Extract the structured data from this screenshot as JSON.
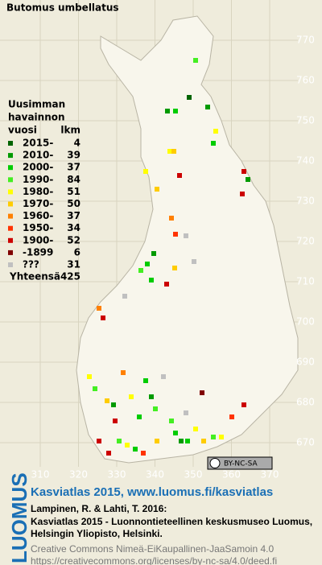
{
  "title": "Butomus umbellatus",
  "legend": {
    "heading": [
      "Uusimman",
      "havainnon",
      "vuosi"
    ],
    "count_heading": "lkm",
    "rows": [
      {
        "label": "2015-",
        "count": 4,
        "color": "#006400"
      },
      {
        "label": "2010-",
        "count": 39,
        "color": "#009a00"
      },
      {
        "label": "2000-",
        "count": 37,
        "color": "#00cc00"
      },
      {
        "label": "1990-",
        "count": 84,
        "color": "#44ee22"
      },
      {
        "label": "1980-",
        "count": 51,
        "color": "#ffff00"
      },
      {
        "label": "1970-",
        "count": 50,
        "color": "#ffcc00"
      },
      {
        "label": "1960-",
        "count": 37,
        "color": "#ff8000"
      },
      {
        "label": "1950-",
        "count": 34,
        "color": "#ff3300"
      },
      {
        "label": "1900-",
        "count": 52,
        "color": "#cc0000"
      },
      {
        "label": "-1899",
        "count": 6,
        "color": "#800000"
      },
      {
        "label": "???",
        "count": 31,
        "color": "#c0c0c0"
      }
    ],
    "total_label": "Yhteensä",
    "total": 425
  },
  "grid": {
    "x_ticks": [
      310,
      320,
      330,
      340,
      350,
      360,
      370
    ],
    "y_ticks": [
      770,
      760,
      750,
      740,
      730,
      720,
      710,
      700,
      690,
      680,
      670
    ]
  },
  "license": "BY-NC-SA",
  "brand": "LUOMUS",
  "footer": {
    "link": "Kasviatlas 2015, www.luomus.fi/kasviatlas",
    "citation": [
      "Lampinen, R. & Lahti, T. 2016:",
      "Kasviatlas 2015 - Luonnontieteellinen keskusmuseo Luomus,",
      "Helsingin Yliopisto, Helsinki."
    ],
    "license_text": "Creative Commons Nimeä-EiKaupallinen-JaaSamoin 4.0",
    "license_url": "https://creativecommons.org/licenses/by-nc-sa/4.0/deed.fi"
  }
}
